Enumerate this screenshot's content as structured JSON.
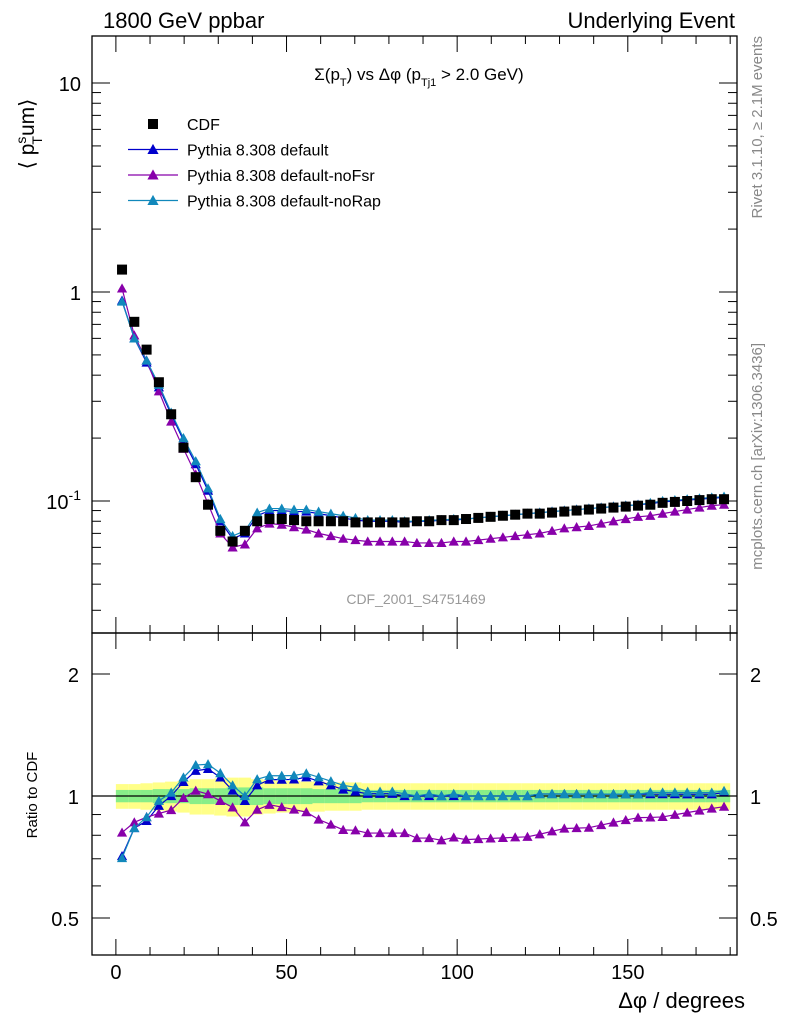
{
  "header": {
    "left": "1800 GeV ppbar",
    "right": "Underlying Event"
  },
  "side": {
    "rivet": "Rivet 3.1.10, ≥ 2.1M events",
    "mcplots": "mcplots.cern.ch [arXiv:1306.3436]"
  },
  "chart_data": {
    "type": "scatter",
    "title": "Σ(p_T) vs Δφ (p_Tj1 > 2.0 GeV)",
    "analysis_label": "CDF_2001_S4751469",
    "xlabel": "Δφ / degrees",
    "ylabel": "⟨ p_T^sum ⟩",
    "ratio_ylabel": "Ratio to CDF",
    "xlim": [
      -7,
      182
    ],
    "ylim": [
      0.025,
      18
    ],
    "yscale": "log",
    "ratio_ylim": [
      0.4,
      2.4
    ],
    "ratio_yscale": "log",
    "x_ticks": [
      0,
      50,
      100,
      150
    ],
    "x_tick_labels": [
      "0",
      "50",
      "100",
      "150"
    ],
    "y_tick_labels": [
      "10",
      "1",
      "10^-1"
    ],
    "ratio_tick_labels": [
      "2",
      "1",
      "0.5"
    ],
    "legend": {
      "placement": "top-left",
      "entries": [
        "CDF",
        "Pythia 8.308 default",
        "Pythia 8.308 default-noFsr",
        "Pythia 8.308 default-noRap"
      ]
    },
    "x": [
      1.8,
      5.4,
      9,
      12.6,
      16.2,
      19.8,
      23.4,
      27,
      30.6,
      34.2,
      37.8,
      41.4,
      45,
      48.6,
      52.2,
      55.8,
      59.4,
      63,
      66.6,
      70.2,
      73.8,
      77.4,
      81,
      84.6,
      88.2,
      91.8,
      95.4,
      99,
      102.6,
      106.2,
      109.8,
      113.4,
      117,
      120.6,
      124.2,
      127.8,
      131.4,
      135,
      138.6,
      142.2,
      145.8,
      149.4,
      153,
      156.6,
      160.2,
      163.8,
      167.4,
      171,
      174.6,
      178.2
    ],
    "series": [
      {
        "name": "CDF",
        "color": "#000000",
        "marker": "square",
        "values": [
          1.28,
          0.72,
          0.53,
          0.37,
          0.26,
          0.18,
          0.13,
          0.096,
          0.072,
          0.064,
          0.072,
          0.08,
          0.082,
          0.082,
          0.081,
          0.08,
          0.08,
          0.08,
          0.08,
          0.079,
          0.079,
          0.079,
          0.079,
          0.079,
          0.08,
          0.08,
          0.081,
          0.081,
          0.082,
          0.083,
          0.084,
          0.085,
          0.086,
          0.087,
          0.087,
          0.088,
          0.089,
          0.09,
          0.091,
          0.092,
          0.093,
          0.094,
          0.095,
          0.096,
          0.098,
          0.099,
          0.1,
          0.101,
          0.102,
          0.102
        ]
      },
      {
        "name": "Pythia 8.308 default",
        "color": "#0000cc",
        "marker": "triangle",
        "values": [
          0.91,
          0.6,
          0.46,
          0.35,
          0.26,
          0.195,
          0.15,
          0.112,
          0.08,
          0.066,
          0.07,
          0.085,
          0.09,
          0.09,
          0.089,
          0.089,
          0.087,
          0.085,
          0.083,
          0.081,
          0.08,
          0.08,
          0.08,
          0.079,
          0.08,
          0.08,
          0.081,
          0.081,
          0.082,
          0.083,
          0.084,
          0.085,
          0.086,
          0.087,
          0.088,
          0.089,
          0.09,
          0.091,
          0.092,
          0.093,
          0.094,
          0.095,
          0.096,
          0.097,
          0.099,
          0.1,
          0.101,
          0.102,
          0.103,
          0.104
        ]
      },
      {
        "name": "Pythia 8.308 default-noFsr",
        "color": "#8800aa",
        "marker": "triangle",
        "values": [
          1.04,
          0.62,
          0.47,
          0.335,
          0.24,
          0.178,
          0.134,
          0.097,
          0.07,
          0.06,
          0.062,
          0.074,
          0.078,
          0.077,
          0.075,
          0.073,
          0.07,
          0.068,
          0.066,
          0.065,
          0.064,
          0.064,
          0.064,
          0.064,
          0.063,
          0.063,
          0.063,
          0.064,
          0.064,
          0.065,
          0.066,
          0.067,
          0.068,
          0.069,
          0.07,
          0.072,
          0.074,
          0.075,
          0.076,
          0.078,
          0.08,
          0.082,
          0.084,
          0.085,
          0.087,
          0.089,
          0.091,
          0.093,
          0.095,
          0.096
        ]
      },
      {
        "name": "Pythia 8.308 default-noRap",
        "color": "#1188bb",
        "marker": "triangle",
        "values": [
          0.9,
          0.6,
          0.47,
          0.36,
          0.265,
          0.2,
          0.155,
          0.115,
          0.082,
          0.068,
          0.072,
          0.088,
          0.092,
          0.092,
          0.091,
          0.091,
          0.089,
          0.087,
          0.085,
          0.083,
          0.081,
          0.081,
          0.081,
          0.08,
          0.08,
          0.081,
          0.081,
          0.082,
          0.082,
          0.083,
          0.084,
          0.085,
          0.086,
          0.087,
          0.088,
          0.089,
          0.09,
          0.091,
          0.092,
          0.093,
          0.094,
          0.095,
          0.096,
          0.098,
          0.1,
          0.101,
          0.102,
          0.103,
          0.104,
          0.105
        ]
      }
    ],
    "ratio_bands": {
      "stat_color": "#88ee88",
      "total_color": "#ffff88",
      "stat_halfwidth": [
        0.035,
        0.035,
        0.035,
        0.04,
        0.04,
        0.04,
        0.045,
        0.045,
        0.045,
        0.05,
        0.05,
        0.05,
        0.045,
        0.045,
        0.045,
        0.045,
        0.04,
        0.04,
        0.04,
        0.04,
        0.035,
        0.035,
        0.035,
        0.035,
        0.035,
        0.035,
        0.035,
        0.035,
        0.035,
        0.035,
        0.035,
        0.035,
        0.035,
        0.035,
        0.035,
        0.035,
        0.035,
        0.035,
        0.035,
        0.035,
        0.035,
        0.035,
        0.035,
        0.035,
        0.035,
        0.035,
        0.035,
        0.035,
        0.035,
        0.035
      ],
      "total_halfwidth": [
        0.07,
        0.07,
        0.075,
        0.08,
        0.085,
        0.09,
        0.1,
        0.1,
        0.105,
        0.11,
        0.11,
        0.1,
        0.095,
        0.09,
        0.09,
        0.085,
        0.085,
        0.08,
        0.08,
        0.08,
        0.075,
        0.075,
        0.075,
        0.075,
        0.075,
        0.075,
        0.075,
        0.075,
        0.075,
        0.075,
        0.075,
        0.075,
        0.075,
        0.075,
        0.075,
        0.075,
        0.075,
        0.075,
        0.075,
        0.075,
        0.075,
        0.075,
        0.075,
        0.075,
        0.075,
        0.075,
        0.075,
        0.075,
        0.075,
        0.075
      ]
    }
  }
}
